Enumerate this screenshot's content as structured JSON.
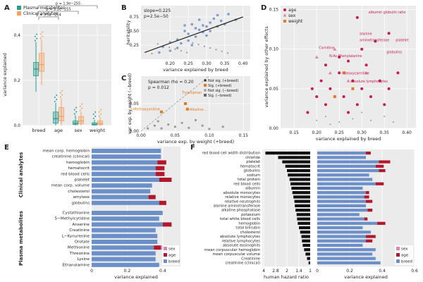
{
  "colors": {
    "plasma": "#2a9d8f",
    "clinical": "#f4a261",
    "blue": "#6a8fc9",
    "age": "#b2182b",
    "sex": "#d986b6",
    "weight": "#e07b24",
    "crimson": "#c51b4d",
    "gray": "#9a9a9a",
    "black": "#111111"
  },
  "chart_data": [
    {
      "id": "A",
      "type": "box",
      "panel_label": "A",
      "legend": [
        "Plasma metabolites",
        "Clinical analytes"
      ],
      "ylabel": "variance explained",
      "categories": [
        "breed",
        "age",
        "sex",
        "weight"
      ],
      "ylim": [
        0,
        0.45
      ],
      "yticks": [
        "0.0",
        "0.2",
        "0.4"
      ],
      "pvalues": [
        "p = 3.5e−254",
        "p = 3.1e−255",
        "p = 1.9e−255"
      ],
      "series": [
        {
          "name": "Plasma metabolites",
          "boxes": [
            {
              "min": 0.15,
              "q1": 0.22,
              "median": 0.25,
              "q3": 0.28,
              "max": 0.37
            },
            {
              "min": 0.0,
              "q1": 0.01,
              "median": 0.03,
              "q3": 0.06,
              "max": 0.1
            },
            {
              "min": 0.0,
              "q1": 0.004,
              "median": 0.01,
              "q3": 0.02,
              "max": 0.045
            },
            {
              "min": 0.0,
              "q1": 0.002,
              "median": 0.005,
              "q3": 0.012,
              "max": 0.025
            }
          ]
        },
        {
          "name": "Clinical analytes",
          "boxes": [
            {
              "min": 0.18,
              "q1": 0.24,
              "median": 0.27,
              "q3": 0.32,
              "max": 0.38
            },
            {
              "min": 0.0,
              "q1": 0.02,
              "median": 0.04,
              "q3": 0.08,
              "max": 0.12
            },
            {
              "min": 0.0,
              "q1": 0.008,
              "median": 0.02,
              "q3": 0.04,
              "max": 0.06
            },
            {
              "min": 0.0,
              "q1": 0.003,
              "median": 0.008,
              "q3": 0.02,
              "max": 0.035
            }
          ]
        }
      ]
    },
    {
      "id": "B",
      "type": "scatter",
      "panel_label": "B",
      "annotation_slope": "slope=0.225",
      "annotation_p": "p=2.5e−50",
      "xlabel": "variance explained by breed",
      "ylabel": "heritability",
      "xlim": [
        0.12,
        0.42
      ],
      "ylim": [
        0,
        0.95
      ],
      "xticks": [
        "0.20",
        "0.25",
        "0.30",
        "0.35",
        "0.40"
      ],
      "yticks": [
        "0.25",
        "0.50",
        "0.75"
      ],
      "trend": [
        [
          0.13,
          0.12
        ],
        [
          0.4,
          0.75
        ]
      ],
      "points": [
        [
          0.18,
          0.22
        ],
        [
          0.2,
          0.3
        ],
        [
          0.22,
          0.35
        ],
        [
          0.23,
          0.28
        ],
        [
          0.24,
          0.5
        ],
        [
          0.25,
          0.45
        ],
        [
          0.26,
          0.62
        ],
        [
          0.27,
          0.55
        ],
        [
          0.28,
          0.7
        ],
        [
          0.29,
          0.6
        ],
        [
          0.3,
          0.58
        ],
        [
          0.31,
          0.65
        ],
        [
          0.32,
          0.72
        ],
        [
          0.33,
          0.78
        ],
        [
          0.35,
          0.62
        ],
        [
          0.36,
          0.8
        ],
        [
          0.38,
          0.7
        ],
        [
          0.27,
          0.4
        ],
        [
          0.25,
          0.33
        ],
        [
          0.22,
          0.2
        ],
        [
          0.29,
          0.48
        ],
        [
          0.31,
          0.5
        ],
        [
          0.33,
          0.58
        ],
        [
          0.24,
          0.6
        ],
        [
          0.2,
          0.15
        ],
        [
          0.17,
          0.12
        ],
        [
          0.26,
          0.25
        ],
        [
          0.34,
          0.68
        ],
        [
          0.28,
          0.52
        ],
        [
          0.3,
          0.42
        ]
      ]
    },
    {
      "id": "C",
      "type": "scatter",
      "panel_label": "C",
      "annotation_rho": "Spearman rho = 0.20",
      "annotation_p": "p = 0.012",
      "legend": [
        "Not sig. (+breed)",
        "Sig. (+breed)",
        "Not sig. (−breed)",
        "Sig. (−breed)"
      ],
      "xlabel": "variance exp. by weight (+breed)",
      "ylabel": "var. exp. by weight (−breed)",
      "xlim": [
        0,
        0.16
      ],
      "ylim": [
        0,
        0.1
      ],
      "xticks": [
        "0.00",
        "0.05",
        "0.10",
        "0.15"
      ],
      "yticks": [
        "0.00",
        "0.05"
      ],
      "labels": [
        "Tryptophan",
        "Alkaline...",
        "3-Methoxyaniline"
      ],
      "points_not_sig": [
        [
          0.01,
          0.005
        ],
        [
          0.02,
          0.01
        ],
        [
          0.03,
          0.005
        ],
        [
          0.04,
          0.012
        ],
        [
          0.05,
          0.008
        ],
        [
          0.06,
          0.015
        ],
        [
          0.07,
          0.006
        ],
        [
          0.09,
          0.01
        ],
        [
          0.1,
          0.004
        ],
        [
          0.12,
          0.008
        ],
        [
          0.08,
          0.02
        ],
        [
          0.025,
          0.018
        ]
      ],
      "points_sig": [
        [
          0.065,
          0.05
        ],
        [
          0.068,
          0.04
        ],
        [
          0.03,
          0.035
        ]
      ]
    },
    {
      "id": "D",
      "type": "scatter",
      "panel_label": "D",
      "legend": [
        "age",
        "sex",
        "weight"
      ],
      "xlabel": "variance explained by breed",
      "ylabel": "variance explained by other effects",
      "xlim": [
        0.12,
        0.42
      ],
      "ylim": [
        0,
        0.155
      ],
      "xticks": [
        "0.15",
        "0.20",
        "0.25",
        "0.30",
        "0.35",
        "0.40"
      ],
      "yticks": [
        "0.00",
        "0.05",
        "0.10",
        "0.15"
      ],
      "labels": [
        "albumin globulin ratio",
        "alanine",
        "aminotransferase",
        "platelet",
        "globulins",
        "Carnitine",
        "N-Ac-Phenylalanine",
        "Deoxycarnitine",
        "absolute lymphocytes"
      ],
      "age_points": [
        [
          0.18,
          0.02
        ],
        [
          0.2,
          0.04
        ],
        [
          0.21,
          0.06
        ],
        [
          0.22,
          0.03
        ],
        [
          0.23,
          0.05
        ],
        [
          0.25,
          0.07
        ],
        [
          0.26,
          0.04
        ],
        [
          0.27,
          0.02
        ],
        [
          0.28,
          0.06
        ],
        [
          0.29,
          0.03
        ],
        [
          0.3,
          0.05
        ],
        [
          0.31,
          0.08
        ],
        [
          0.32,
          0.04
        ],
        [
          0.34,
          0.06
        ],
        [
          0.36,
          0.05
        ],
        [
          0.38,
          0.07
        ],
        [
          0.29,
          0.14
        ],
        [
          0.33,
          0.11
        ],
        [
          0.36,
          0.12
        ],
        [
          0.25,
          0.09
        ],
        [
          0.22,
          0.08
        ],
        [
          0.3,
          0.1
        ],
        [
          0.27,
          0.085
        ],
        [
          0.35,
          0.03
        ],
        [
          0.19,
          0.05
        ]
      ],
      "sex_points": [
        [
          0.2,
          0.09
        ],
        [
          0.24,
          0.1
        ],
        [
          0.23,
          0.07
        ],
        [
          0.27,
          0.06
        ],
        [
          0.31,
          0.07
        ]
      ],
      "weight_points": [
        [
          0.26,
          0.07
        ],
        [
          0.28,
          0.05
        ],
        [
          0.24,
          0.04
        ]
      ],
      "gray_points": [
        [
          0.2,
          0.01
        ],
        [
          0.22,
          0.015
        ],
        [
          0.25,
          0.008
        ],
        [
          0.28,
          0.012
        ],
        [
          0.32,
          0.01
        ],
        [
          0.35,
          0.015
        ],
        [
          0.37,
          0.008
        ],
        [
          0.3,
          0.02
        ],
        [
          0.23,
          0.005
        ]
      ]
    },
    {
      "id": "E",
      "type": "stacked_barh",
      "panel_label": "E",
      "xlabel": "variance explained",
      "xlim": [
        0,
        0.5
      ],
      "xticks": [
        "0",
        "0.2",
        "0.4"
      ],
      "groups": [
        "Clinical analytes",
        "Plasma metabolites"
      ],
      "legend": [
        "sex",
        "age",
        "breed"
      ],
      "categories": [
        "mean corp. hemoglobin",
        "creatinine (clinical)",
        "hemoglobin",
        "hematocrit",
        "red blood cells",
        "platelet",
        "mean corp. volume",
        "cholesterol",
        "amylase",
        "globulins",
        "Cystathionine",
        "5−Methylcytidine",
        "Anserine",
        "Creatinine",
        "L−Kynurenine",
        "Orotate",
        "Methionine",
        "Threonine",
        "Lysine",
        "Ethanolamine"
      ],
      "group_of": [
        0,
        0,
        0,
        0,
        0,
        0,
        0,
        0,
        0,
        0,
        1,
        1,
        1,
        1,
        1,
        1,
        1,
        1,
        1,
        1
      ],
      "series": [
        {
          "name": "breed",
          "values": [
            0.39,
            0.39,
            0.37,
            0.36,
            0.36,
            0.38,
            0.34,
            0.33,
            0.32,
            0.38,
            0.4,
            0.38,
            0.4,
            0.36,
            0.37,
            0.37,
            0.35,
            0.36,
            0.36,
            0.38
          ]
        },
        {
          "name": "age",
          "values": [
            0.0,
            0.0,
            0.05,
            0.05,
            0.05,
            0.07,
            0.0,
            0.0,
            0.04,
            0.04,
            0.0,
            0.0,
            0.05,
            0.0,
            0.0,
            0.0,
            0.04,
            0.0,
            0.0,
            0.0
          ]
        },
        {
          "name": "sex",
          "values": [
            0.0,
            0.0,
            0.0,
            0.0,
            0.0,
            0.0,
            0.0,
            0.0,
            0.0,
            0.0,
            0.0,
            0.0,
            0.0,
            0.0,
            0.0,
            0.0,
            0.02,
            0.0,
            0.0,
            0.0
          ]
        }
      ]
    },
    {
      "id": "F",
      "type": "barh_pair",
      "panel_label": "F",
      "xlabel_left": "human hazard ratio",
      "xlabel_right": "variance explained",
      "xticks_left": [
        "4",
        "2.8",
        "2",
        "1.4",
        "1"
      ],
      "xticks_right": [
        "0",
        "0.2",
        "0.4",
        "0.6"
      ],
      "xlim_right": [
        0,
        0.6
      ],
      "legend": [
        "sex",
        "age",
        "breed"
      ],
      "categories": [
        "red blood cell width distribution",
        "chloride",
        "platelet",
        "hematocrit",
        "globulins",
        "sodium",
        "total protein",
        "red blood cells",
        "albumin",
        "absolute monocytes",
        "relative monocytes",
        "relative neutrophils",
        "alanine aminotransferase",
        "alkaline phosphatase",
        "potassium",
        "total white blood cells",
        "hemoglobin",
        "total bilirubin",
        "cholesterol",
        "absolute lymphocytes",
        "relative lymphocytes",
        "absolute eosinophils",
        "mean corpuscular hemoglobin",
        "mean corpuscular volume",
        "Creatinine",
        "creatinine (clinical)"
      ],
      "hazard": [
        3.8,
        2.6,
        2.3,
        2.1,
        2.0,
        1.95,
        1.85,
        1.8,
        1.75,
        1.7,
        1.65,
        1.6,
        1.58,
        1.55,
        1.5,
        1.48,
        1.45,
        1.4,
        1.35,
        1.3,
        1.28,
        1.25,
        1.2,
        1.15,
        1.1,
        1.05
      ],
      "series": [
        {
          "name": "breed",
          "values": [
            0.3,
            0.3,
            0.38,
            0.36,
            0.38,
            0.32,
            0.34,
            0.36,
            0.28,
            0.3,
            0.29,
            0.3,
            0.3,
            0.31,
            0.26,
            0.29,
            0.37,
            0.28,
            0.33,
            0.3,
            0.3,
            0.28,
            0.36,
            0.34,
            0.36,
            0.39
          ]
        },
        {
          "name": "age",
          "values": [
            0.03,
            0.0,
            0.07,
            0.05,
            0.04,
            0.0,
            0.0,
            0.05,
            0.0,
            0.02,
            0.03,
            0.04,
            0.0,
            0.03,
            0.0,
            0.02,
            0.05,
            0.0,
            0.0,
            0.06,
            0.04,
            0.0,
            0.0,
            0.0,
            0.0,
            0.0
          ]
        },
        {
          "name": "sex",
          "values": [
            0.0,
            0.0,
            0.0,
            0.0,
            0.0,
            0.0,
            0.0,
            0.0,
            0.0,
            0.0,
            0.0,
            0.0,
            0.0,
            0.0,
            0.0,
            0.0,
            0.0,
            0.0,
            0.0,
            0.0,
            0.0,
            0.0,
            0.0,
            0.0,
            0.0,
            0.0
          ]
        }
      ]
    }
  ]
}
